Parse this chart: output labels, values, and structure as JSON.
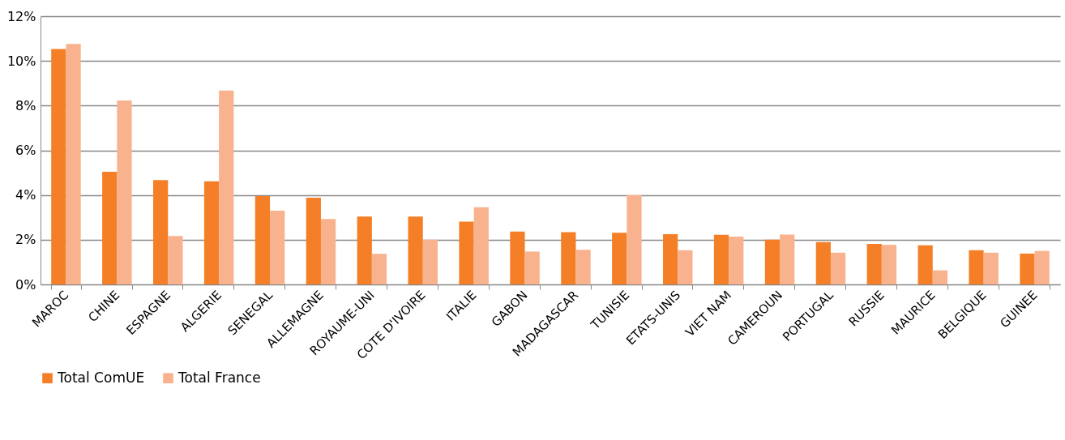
{
  "chart_data": {
    "type": "bar",
    "categories": [
      "MAROC",
      "CHINE",
      "ESPAGNE",
      "ALGERIE",
      "SENEGAL",
      "ALLEMAGNE",
      "ROYAUME-UNI",
      "COTE D'IVOIRE",
      "ITALIE",
      "GABON",
      "MADAGASCAR",
      "TUNISIE",
      "ETATS-UNIS",
      "VIET NAM",
      "CAMEROUN",
      "PORTUGAL",
      "RUSSIE",
      "MAURICE",
      "BELGIQUE",
      "GUINEE"
    ],
    "series": [
      {
        "name": "Total ComUE",
        "color": "#f47f27",
        "values": [
          10.53,
          5.04,
          4.67,
          4.61,
          3.95,
          3.88,
          3.04,
          3.04,
          2.81,
          2.37,
          2.34,
          2.31,
          2.25,
          2.22,
          2.0,
          1.89,
          1.81,
          1.75,
          1.53,
          1.38
        ]
      },
      {
        "name": "Total France",
        "color": "#f8b38e",
        "values": [
          10.76,
          8.23,
          2.17,
          8.67,
          3.3,
          2.93,
          1.37,
          2.0,
          3.45,
          1.47,
          1.55,
          4.0,
          1.53,
          2.14,
          2.23,
          1.42,
          1.77,
          0.63,
          1.42,
          1.5
        ]
      }
    ],
    "ylim": [
      0,
      12
    ],
    "yticks": [
      {
        "value": 0,
        "label": "0%"
      },
      {
        "value": 2,
        "label": "2%"
      },
      {
        "value": 4,
        "label": "4%"
      },
      {
        "value": 6,
        "label": "6%"
      },
      {
        "value": 8,
        "label": "8%"
      },
      {
        "value": 10,
        "label": "10%"
      },
      {
        "value": 12,
        "label": "12%"
      }
    ],
    "grid": "y",
    "legend": "bottom"
  }
}
